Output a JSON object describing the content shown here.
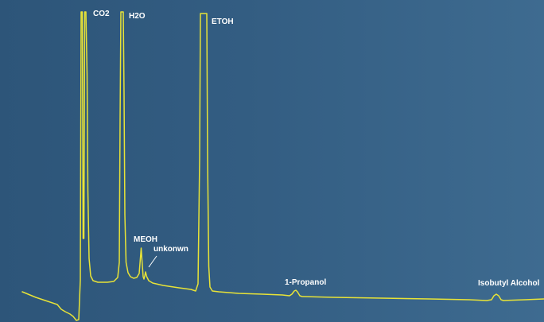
{
  "chart_data": {
    "type": "line",
    "title": "",
    "xlabel": "",
    "ylabel": "",
    "grid": false,
    "legend": "none",
    "line_color": "#e8e337",
    "label_color": "#ffffff",
    "background_color": "#30597d",
    "peaks": [
      {
        "label": "CO2"
      },
      {
        "label": "H2O"
      },
      {
        "label": "MEOH"
      },
      {
        "label": "unkonwn"
      },
      {
        "label": "ETOH"
      },
      {
        "label": "1-Propanol"
      },
      {
        "label": "Isobutyl Alcohol"
      }
    ]
  }
}
